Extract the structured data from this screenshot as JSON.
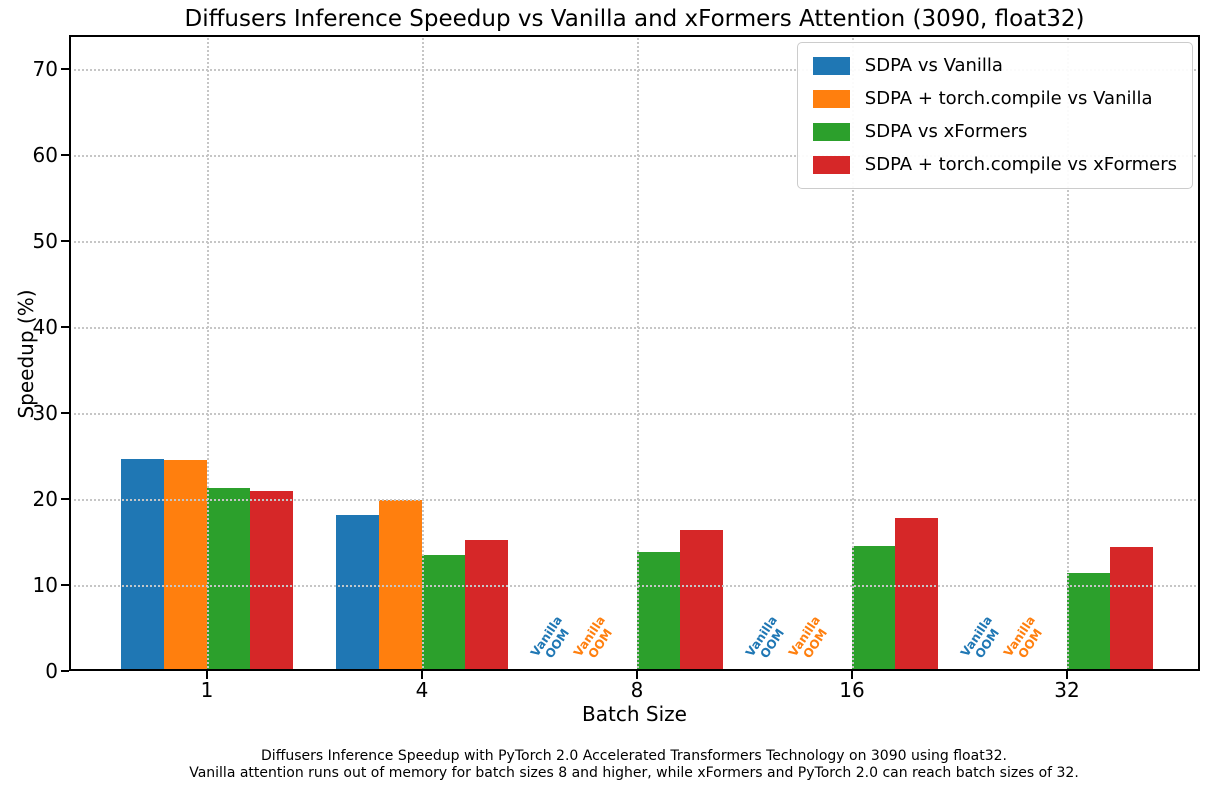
{
  "figure": {
    "caption": {
      "line1": "Diffusers Inference Speedup with PyTorch 2.0 Accelerated Transformers Technology on 3090 using float32.",
      "line2": "Vanilla attention runs out of memory for batch sizes 8 and higher, while xFormers and PyTorch 2.0 can reach batch sizes of 32."
    }
  },
  "chart_data": {
    "type": "bar",
    "title": "Diffusers Inference Speedup vs Vanilla and xFormers Attention (3090, float32)",
    "xlabel": "Batch Size",
    "ylabel": "Speedup (%)",
    "ylim": [
      0,
      74
    ],
    "yticks": [
      0,
      10,
      20,
      30,
      40,
      50,
      60,
      70
    ],
    "grid": true,
    "grid_style": "dotted",
    "legend_position": "upper right",
    "categories": [
      "1",
      "4",
      "8",
      "16",
      "32"
    ],
    "series": [
      {
        "name": "SDPA vs Vanilla",
        "color": "#1f77b4",
        "values": [
          24.7,
          18.1,
          null,
          null,
          null
        ]
      },
      {
        "name": "SDPA + torch.compile vs Vanilla",
        "color": "#ff7f0e",
        "values": [
          24.5,
          19.9,
          null,
          null,
          null
        ]
      },
      {
        "name": "SDPA vs xFormers",
        "color": "#2ca02c",
        "values": [
          21.3,
          13.5,
          13.8,
          14.5,
          11.4
        ]
      },
      {
        "name": "SDPA + torch.compile vs xFormers",
        "color": "#d62728",
        "values": [
          21.0,
          15.2,
          16.4,
          17.8,
          14.4
        ]
      }
    ],
    "oom_annotation": {
      "line1": "Vanilla",
      "line2": "OOM",
      "applies_to_series": [
        "SDPA vs Vanilla",
        "SDPA + torch.compile vs Vanilla"
      ],
      "categories": [
        "8",
        "16",
        "32"
      ]
    }
  }
}
